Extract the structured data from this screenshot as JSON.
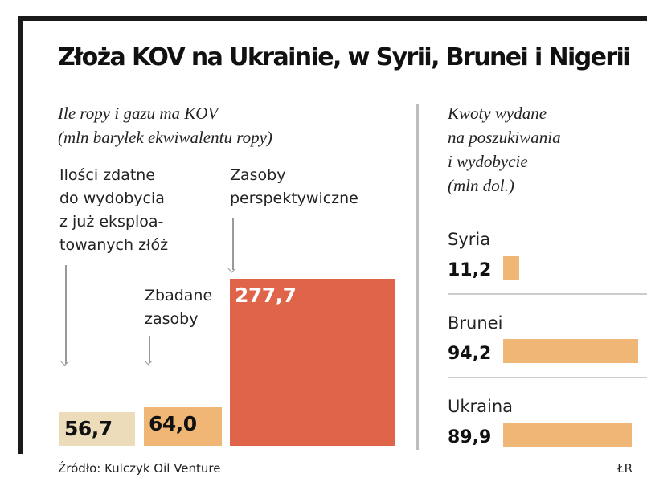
{
  "title": "Złoża KOV na Ukrainie, w Syrii, Brunei i Nigerii",
  "source": "Źródło: Kulczyk Oil Venture",
  "credit": "ŁR",
  "chart_data": [
    {
      "type": "bar",
      "subtitle_lines": [
        "Ile ropy i gazu ma KOV",
        "(mln baryłek ekwiwalentu ropy)"
      ],
      "ylim": [
        0,
        277.7
      ],
      "categories": [
        {
          "label_lines": [
            "Ilości zdatne",
            "do wydobycia",
            "z już eksploa-",
            "towanych złóż"
          ],
          "value": 56.7,
          "value_label": "56,7",
          "color": "#ecdcb9",
          "value_color": "#111111"
        },
        {
          "label_lines": [
            "Zbadane",
            "zasoby"
          ],
          "value": 64.0,
          "value_label": "64,0",
          "color": "#f0b676",
          "value_color": "#111111"
        },
        {
          "label_lines": [
            "Zasoby",
            "perspektywiczne"
          ],
          "value": 277.7,
          "value_label": "277,7",
          "color": "#df644a",
          "value_color": "#ffffff"
        }
      ]
    },
    {
      "type": "bar",
      "orientation": "horizontal",
      "subtitle_lines": [
        "Kwoty wydane",
        "na poszukiwania",
        "i wydobycie",
        "(mln dol.)"
      ],
      "xlim": [
        0,
        94.2
      ],
      "color": "#f0b676",
      "categories": [
        {
          "label": "Syria",
          "value": 11.2,
          "value_label": "11,2"
        },
        {
          "label": "Brunei",
          "value": 94.2,
          "value_label": "94,2"
        },
        {
          "label": "Ukraina",
          "value": 89.9,
          "value_label": "89,9"
        }
      ]
    }
  ]
}
